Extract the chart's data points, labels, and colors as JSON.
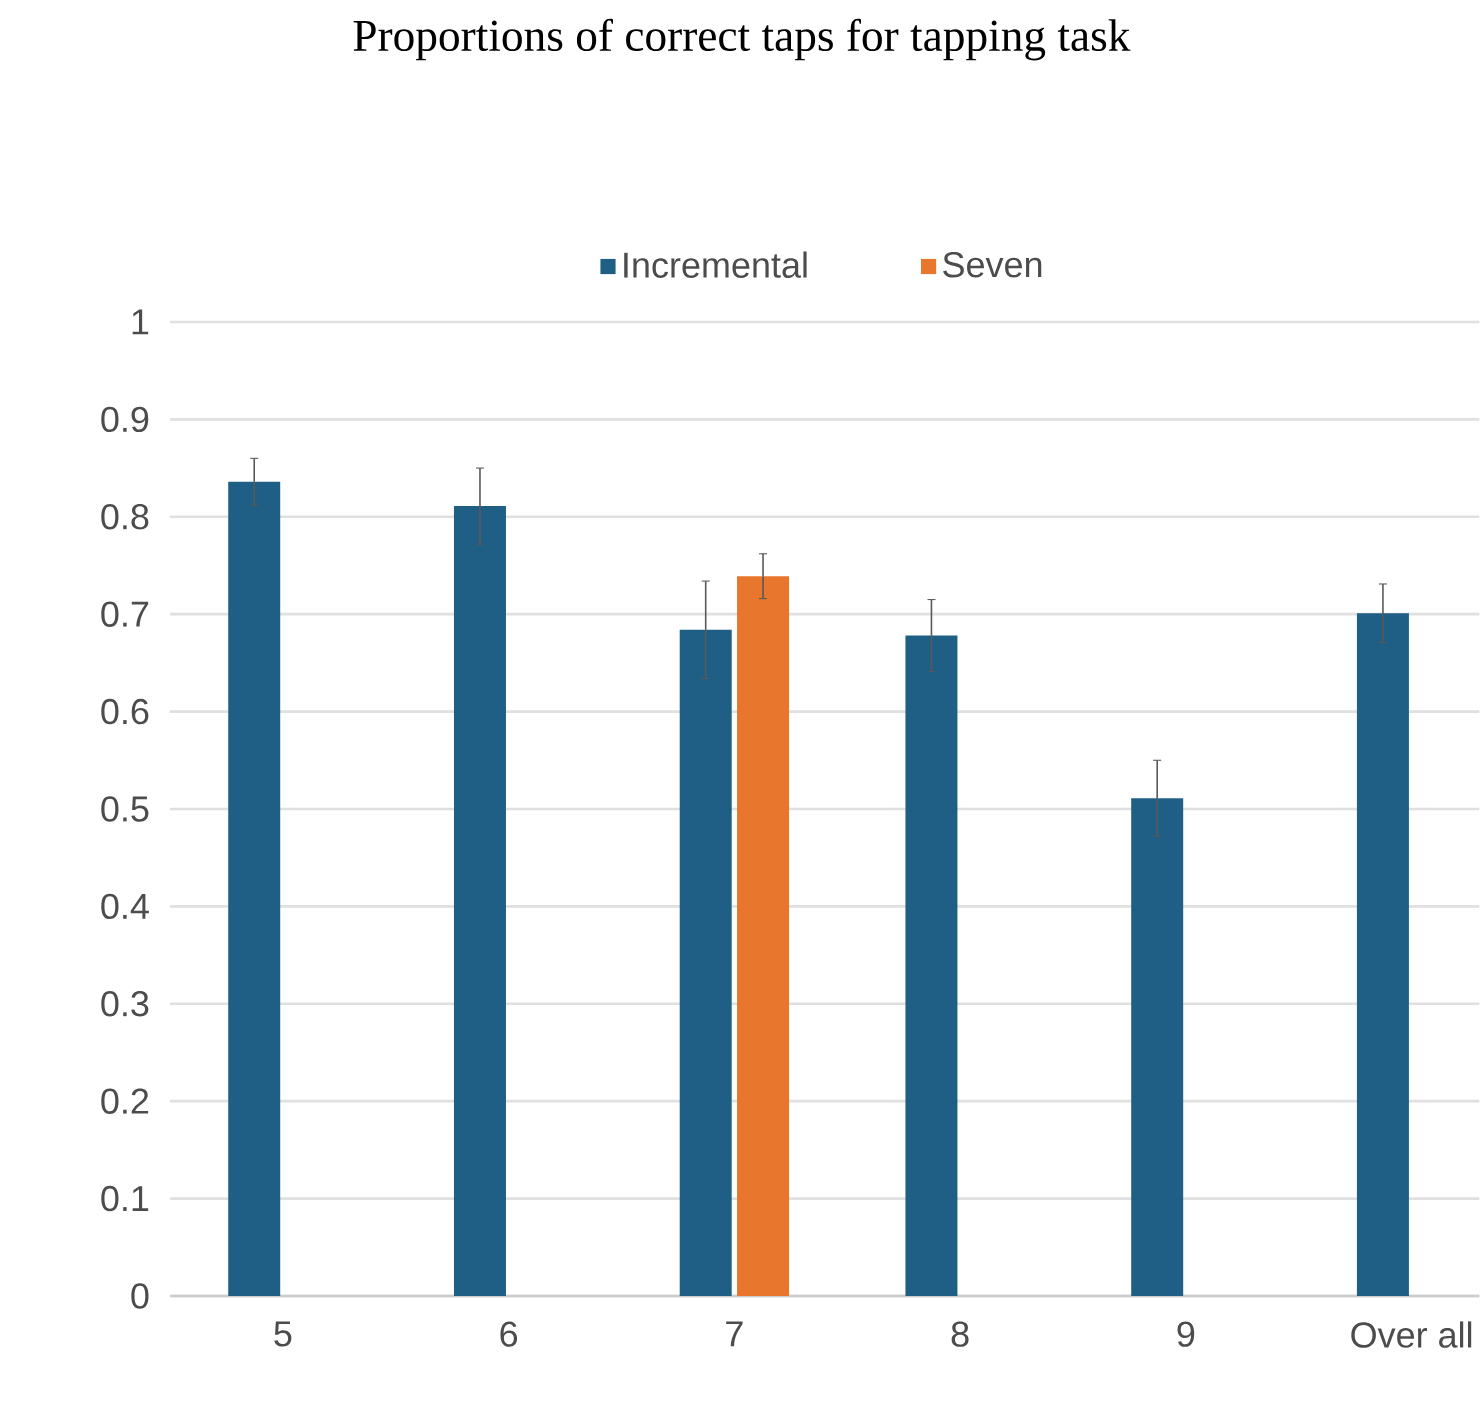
{
  "chart_data": {
    "type": "bar",
    "title": "Proportions of correct taps for tapping task",
    "categories": [
      "5",
      "6",
      "7",
      "8",
      "9",
      "Over all"
    ],
    "series": [
      {
        "name": "Incremental",
        "color": "#1f5f86",
        "values": [
          0.836,
          0.811,
          0.684,
          0.678,
          0.511,
          0.701
        ],
        "errors": [
          0.024,
          0.039,
          0.05,
          0.037,
          0.039,
          0.03
        ]
      },
      {
        "name": "Seven",
        "color": "#e8762d",
        "values": [
          null,
          null,
          0.739,
          null,
          null,
          null
        ],
        "errors": [
          null,
          null,
          0.023,
          null,
          null,
          null
        ]
      }
    ],
    "ylim": [
      0,
      1
    ],
    "yticks": [
      0,
      0.1,
      0.2,
      0.3,
      0.4,
      0.5,
      0.6,
      0.7,
      0.8,
      0.9,
      1
    ],
    "grid": "y",
    "legend": "top"
  }
}
